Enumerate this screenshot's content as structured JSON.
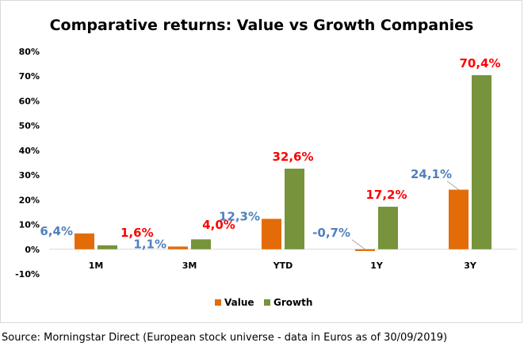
{
  "chart_data": {
    "type": "bar",
    "title": "Comparative returns: Value vs Growth Companies",
    "categories": [
      "1M",
      "3M",
      "YTD",
      "1Y",
      "3Y"
    ],
    "series": [
      {
        "name": "Value",
        "color": "#e36c09",
        "label_color": "#4f81bd",
        "values": [
          6.4,
          1.1,
          12.3,
          -0.7,
          24.1
        ],
        "labels": [
          "6,4%",
          "1,1%",
          "12,3%",
          "-0,7%",
          "24,1%"
        ]
      },
      {
        "name": "Growth",
        "color": "#77933c",
        "label_color": "#ff0000",
        "values": [
          1.6,
          4.0,
          32.6,
          17.2,
          70.4
        ],
        "labels": [
          "1,6%",
          "4,0%",
          "32,6%",
          "17,2%",
          "70,4%"
        ]
      }
    ],
    "ylim": [
      -10,
      80
    ],
    "yticks": [
      -10,
      0,
      10,
      20,
      30,
      40,
      50,
      60,
      70,
      80
    ],
    "ytick_labels": [
      "-10%",
      "0%",
      "10%",
      "20%",
      "30%",
      "40%",
      "50%",
      "60%",
      "70%",
      "80%"
    ],
    "grid": false,
    "legend": "bottom-center",
    "xlabel": "",
    "ylabel": ""
  },
  "source": "Source: Morningstar Direct (European stock universe - data in Euros as of 30/09/2019)"
}
